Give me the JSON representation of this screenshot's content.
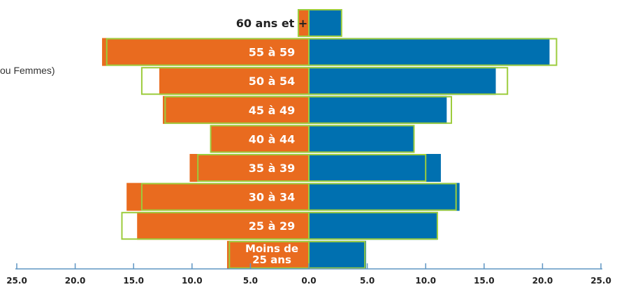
{
  "partial_text": "ou Femmes)",
  "chart_data": {
    "type": "bar",
    "orientation": "horizontal-pyramid",
    "categories": [
      "Moins de 25 ans",
      "25 à 29",
      "30 à 34",
      "35 à 39",
      "40 à 44",
      "45 à 49",
      "50 à 54",
      "55 à 59",
      "60 ans et +"
    ],
    "series": [
      {
        "side": "left",
        "values": [
          7.0,
          14.7,
          15.6,
          10.2,
          8.4,
          12.5,
          12.8,
          17.7,
          0.9
        ]
      },
      {
        "side": "right",
        "values": [
          4.9,
          11.0,
          12.9,
          11.3,
          9.0,
          11.8,
          16.0,
          20.6,
          2.8
        ]
      },
      {
        "side": "left",
        "style": "outline",
        "values": [
          6.8,
          16.0,
          14.3,
          9.5,
          8.4,
          12.3,
          14.3,
          17.3,
          0.9
        ]
      },
      {
        "side": "right",
        "style": "outline",
        "values": [
          4.8,
          11.0,
          12.6,
          10.0,
          9.0,
          12.2,
          17.0,
          21.2,
          2.8
        ]
      }
    ],
    "x_ticks": [
      "25.0",
      "20.0",
      "15.0",
      "10.0",
      "5.0",
      "0.0",
      "5.0",
      "10.0",
      "15.0",
      "20.0",
      "25.0"
    ],
    "xlim": [
      0,
      25
    ],
    "grid": false,
    "colors": {
      "left": "#e96b1f",
      "right": "#0070b0",
      "outline": "#9ccc3c",
      "axis": "#5f95c3",
      "label_text": "#ffffff",
      "top_label_text": "#222222",
      "tick_text": "#222222"
    }
  }
}
